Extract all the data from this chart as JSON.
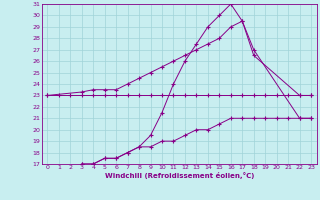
{
  "xlabel": "Windchill (Refroidissement éolien,°C)",
  "background_color": "#c8eef0",
  "grid_color": "#a0d4d8",
  "line_color": "#880088",
  "xlim": [
    -0.5,
    23.5
  ],
  "ylim": [
    17,
    31
  ],
  "yticks": [
    17,
    18,
    19,
    20,
    21,
    22,
    23,
    24,
    25,
    26,
    27,
    28,
    29,
    30,
    31
  ],
  "xticks": [
    0,
    1,
    2,
    3,
    4,
    5,
    6,
    7,
    8,
    9,
    10,
    11,
    12,
    13,
    14,
    15,
    16,
    17,
    18,
    19,
    20,
    21,
    22,
    23
  ],
  "series": [
    {
      "x": [
        0,
        1,
        2,
        3,
        4,
        5,
        6,
        7,
        8,
        9,
        10,
        11,
        12,
        13,
        14,
        15,
        16,
        17,
        18,
        19,
        20,
        21,
        22,
        23
      ],
      "y": [
        23,
        23,
        23,
        23,
        23,
        23,
        23,
        23,
        23,
        23,
        23,
        23,
        23,
        23,
        23,
        23,
        23,
        23,
        23,
        23,
        23,
        23,
        23,
        23
      ]
    },
    {
      "x": [
        0,
        3,
        4,
        5,
        6,
        7,
        8,
        9,
        10,
        11,
        12,
        13,
        14,
        15,
        16,
        17,
        18,
        22,
        23
      ],
      "y": [
        23,
        23.3,
        23.5,
        23.5,
        23.5,
        24,
        24.5,
        25,
        25.5,
        26,
        26.5,
        27,
        27.5,
        28,
        29,
        29.5,
        26.5,
        23,
        23
      ]
    },
    {
      "x": [
        3,
        4,
        5,
        6,
        7,
        8,
        9,
        10,
        11,
        12,
        13,
        14,
        15,
        16,
        17,
        18,
        22,
        23
      ],
      "y": [
        17,
        17,
        17.5,
        17.5,
        18,
        18.5,
        19.5,
        21.5,
        24,
        26,
        27.5,
        29,
        30,
        31,
        29.5,
        27,
        21,
        21
      ]
    },
    {
      "x": [
        3,
        4,
        5,
        6,
        7,
        8,
        9,
        10,
        11,
        12,
        13,
        14,
        15,
        16,
        17,
        18,
        19,
        20,
        21,
        22,
        23
      ],
      "y": [
        17,
        17,
        17.5,
        17.5,
        18,
        18.5,
        18.5,
        19,
        19,
        19.5,
        20,
        20,
        20.5,
        21,
        21,
        21,
        21,
        21,
        21,
        21,
        21
      ]
    }
  ]
}
